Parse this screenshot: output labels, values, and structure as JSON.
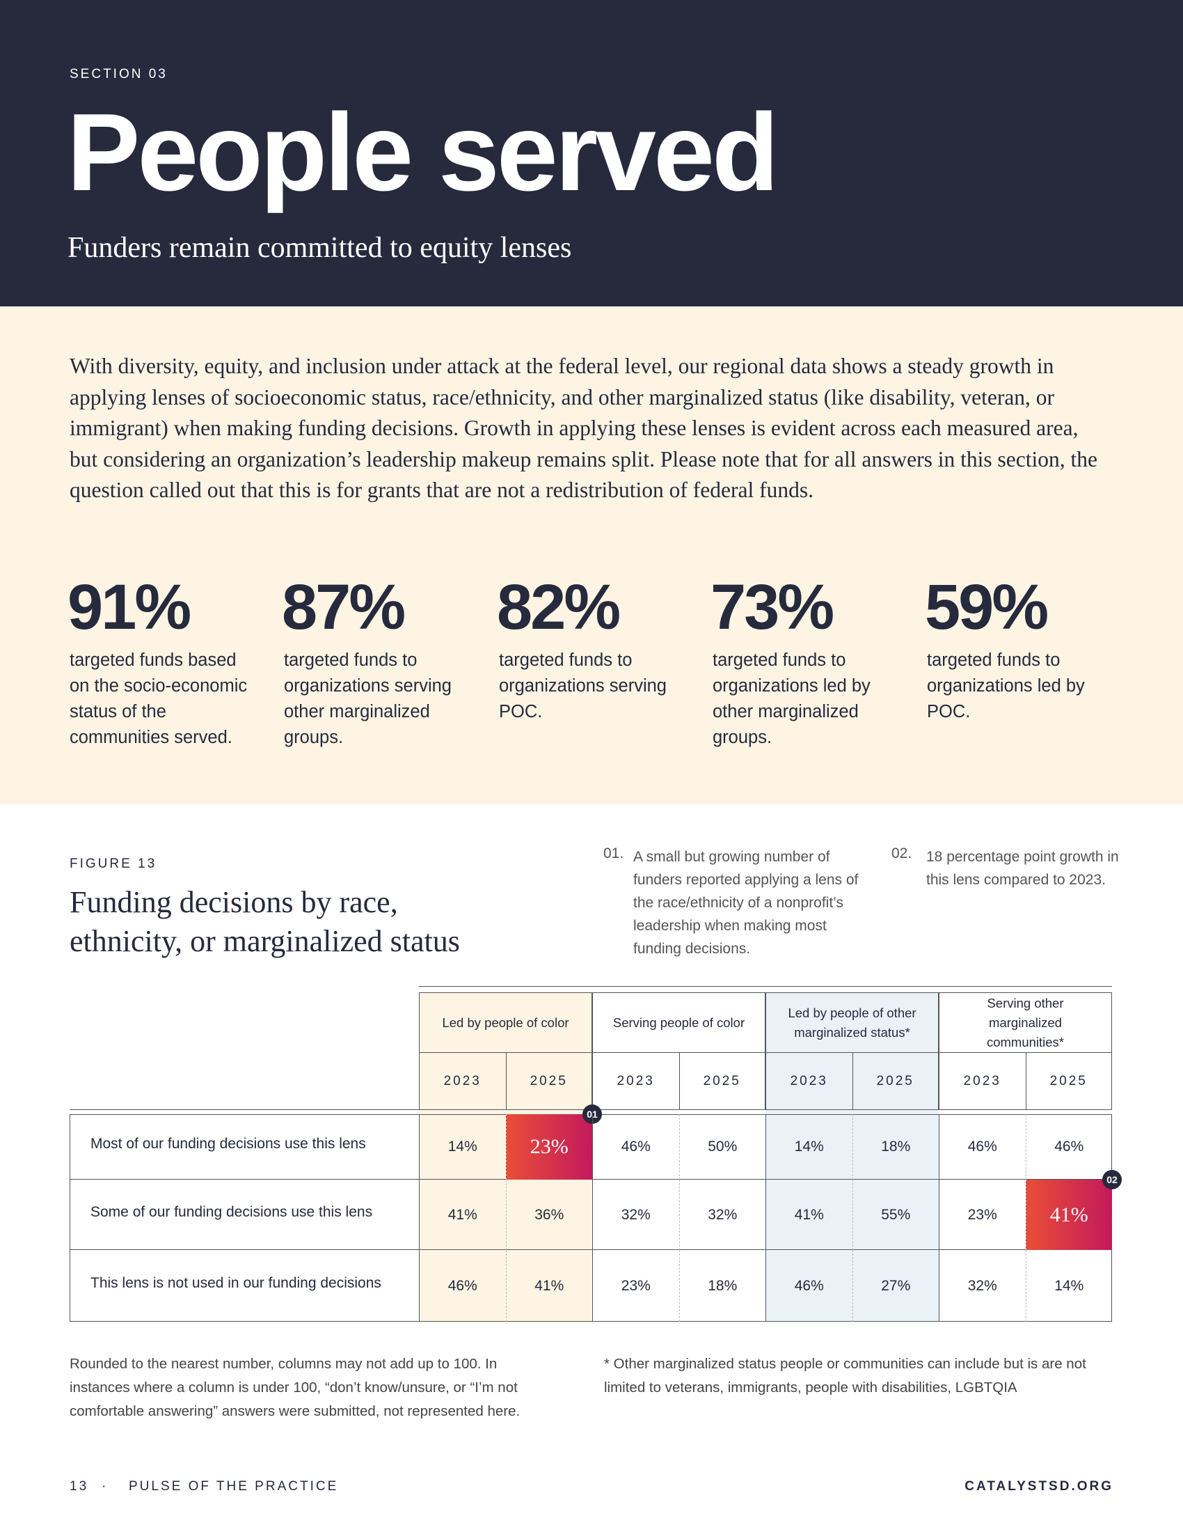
{
  "header": {
    "section": "SECTION 03",
    "title": "People served",
    "subtitle": "Funders remain committed to equity lenses"
  },
  "intro": "With diversity, equity, and inclusion under attack at the federal level, our regional data shows a steady growth in applying lenses of socioeconomic status, race/ethnicity, and other marginalized status (like disability, veteran, or immigrant) when making funding decisions. Growth in applying these lenses is evident across each measured area, but considering an organization’s leadership makeup remains split. Please note that for all answers in this section, the question called out that this is for grants that are not a redistribution of federal funds.",
  "stats": [
    {
      "value": "91%",
      "text": "targeted funds based on the socio-economic status of the communities served."
    },
    {
      "value": "87%",
      "text": "targeted funds to organizations serving other marginalized groups."
    },
    {
      "value": "82%",
      "text": "targeted funds to organizations serving POC."
    },
    {
      "value": "73%",
      "text": "targeted funds to organizations led by other marginalized groups."
    },
    {
      "value": "59%",
      "text": "targeted funds to organizations led by POC."
    }
  ],
  "figure": {
    "label": "FIGURE 13",
    "title": "Funding decisions by race, ethnicity, or marginalized status",
    "notes": [
      {
        "marker": "01.",
        "badge": "01",
        "text": "A small but growing number of funders reported applying a lens of the race/ethnicity of a nonprofit’s leadership when making most funding decisions."
      },
      {
        "marker": "02.",
        "badge": "02",
        "text": "18 percentage point growth in this lens compared to 2023."
      }
    ]
  },
  "table": {
    "groups": [
      {
        "label": "Led by people of color",
        "years": [
          "2023",
          "2025"
        ]
      },
      {
        "label": "Serving people of color",
        "years": [
          "2023",
          "2025"
        ]
      },
      {
        "label": "Led by people of other marginalized status*",
        "years": [
          "2023",
          "2025"
        ]
      },
      {
        "label": "Serving other marginalized communities*",
        "years": [
          "2023",
          "2025"
        ]
      }
    ],
    "rows": [
      {
        "label": "Most of our funding decisions use this lens",
        "values": [
          "14%",
          "23%",
          "46%",
          "50%",
          "14%",
          "18%",
          "46%",
          "46%"
        ]
      },
      {
        "label": "Some of our funding decisions use this lens",
        "values": [
          "41%",
          "36%",
          "32%",
          "32%",
          "41%",
          "55%",
          "23%",
          "41%"
        ]
      },
      {
        "label": "This lens is not used in our funding decisions",
        "values": [
          "46%",
          "41%",
          "23%",
          "18%",
          "46%",
          "27%",
          "32%",
          "14%"
        ]
      }
    ]
  },
  "footnotes": [
    "Rounded to the nearest number, columns may not add up to 100. In instances where a column is under 100, “don’t know/unsure, or “I’m not comfortable answering” answers were submitted, not represented here.",
    "* Other marginalized status people or communities can include but is are not limited to veterans, immigrants, people with disabilities, LGBTQIA"
  ],
  "footer": {
    "page": "13",
    "sep": "·",
    "publication": "PULSE OF THE PRACTICE",
    "site": "CATALYSTSD.ORG"
  }
}
